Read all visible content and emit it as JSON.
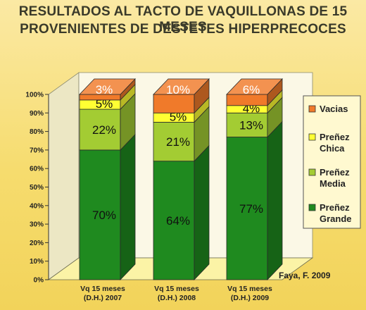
{
  "chart_data": {
    "type": "bar",
    "stacked": true,
    "percent_stacked": true,
    "title": "RESULTADOS AL TACTO DE VAQUILLONAS DE 15 MESES",
    "subtitle": "PROVENIENTES DE DESTETES HIPERPRECOCES",
    "categories": [
      [
        "Vq 15 meses",
        "(D.H.) 2007"
      ],
      [
        "Vq 15 meses",
        "(D.H.) 2008"
      ],
      [
        "Vq 15 meses",
        "(D.H.) 2009"
      ]
    ],
    "series": [
      {
        "name": "Preñez Grande",
        "name_lines": [
          "Preñez",
          "Grande"
        ],
        "values": [
          70,
          64,
          77
        ],
        "labels": [
          "70%",
          "64%",
          "77%"
        ],
        "color": "#1f8a1f",
        "label_color": "#101010"
      },
      {
        "name": "Preñez Media",
        "name_lines": [
          "Preñez",
          "Media"
        ],
        "values": [
          22,
          21,
          13
        ],
        "labels": [
          "22%",
          "21%",
          "13%"
        ],
        "color": "#a3cc33",
        "label_color": "#101010"
      },
      {
        "name": "Preñez Chica",
        "name_lines": [
          "Preñez",
          "Chica"
        ],
        "values": [
          5,
          5,
          4
        ],
        "labels": [
          "5%",
          "5%",
          "4%"
        ],
        "color": "#ffff33",
        "label_color": "#101010"
      },
      {
        "name": "Vacias",
        "name_lines": [
          "Vacias"
        ],
        "values": [
          3,
          10,
          6
        ],
        "labels": [
          "3%",
          "10%",
          "6%"
        ],
        "color": "#f07a2a",
        "label_color": "#ffffff"
      }
    ],
    "legend_order": [
      "Vacias",
      "Preñez Chica",
      "Preñez Media",
      "Preñez Grande"
    ],
    "yticks": [
      "0%",
      "10%",
      "20%",
      "30%",
      "40%",
      "50%",
      "60%",
      "70%",
      "80%",
      "90%",
      "100%"
    ],
    "ylim": [
      0,
      100
    ],
    "legend": "right",
    "grid": false,
    "credit": "Faya, F. 2009"
  }
}
